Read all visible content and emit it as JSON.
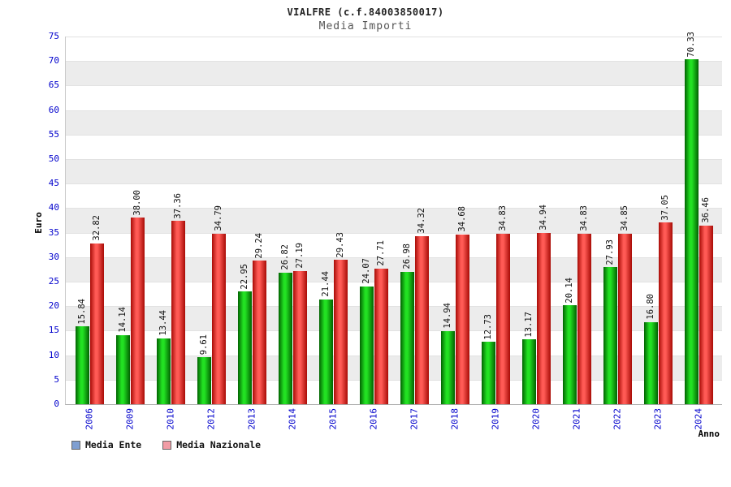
{
  "title": "VIALFRE (c.f.84003850017)",
  "subtitle": "Media Importi",
  "chart_data": {
    "type": "bar",
    "title": "VIALFRE (c.f.84003850017)",
    "subtitle": "Media Importi",
    "xlabel": "Anno",
    "ylabel": "Euro",
    "ylim": [
      0,
      75
    ],
    "ytick_step": 5,
    "grid": "alternating-horizontal-bands",
    "legend_position": "bottom-left",
    "categories": [
      "2006",
      "2009",
      "2010",
      "2012",
      "2013",
      "2014",
      "2015",
      "2016",
      "2017",
      "2018",
      "2019",
      "2020",
      "2021",
      "2022",
      "2023",
      "2024"
    ],
    "series": [
      {
        "name": "Media Ente",
        "bar_edge_color": "#016201",
        "bar_center_color": "#22e122",
        "legend_color": "#7f9fd1",
        "values": [
          15.84,
          14.14,
          13.44,
          9.61,
          22.95,
          26.82,
          21.44,
          24.07,
          26.98,
          14.94,
          12.73,
          13.17,
          20.14,
          27.93,
          16.8,
          70.33
        ]
      },
      {
        "name": "Media Nazionale",
        "bar_edge_color": "#a80b06",
        "bar_center_color": "#ff5a55",
        "legend_color": "#f19ca5",
        "values": [
          32.82,
          38.0,
          37.36,
          34.79,
          29.24,
          27.19,
          29.43,
          27.71,
          34.32,
          34.68,
          34.83,
          34.94,
          34.83,
          34.85,
          37.05,
          36.46
        ]
      }
    ],
    "colors": {
      "axis_text": "#0000cc",
      "value_label_text": "#111111",
      "band_gray": "#ececec",
      "band_white": "#ffffff"
    }
  }
}
